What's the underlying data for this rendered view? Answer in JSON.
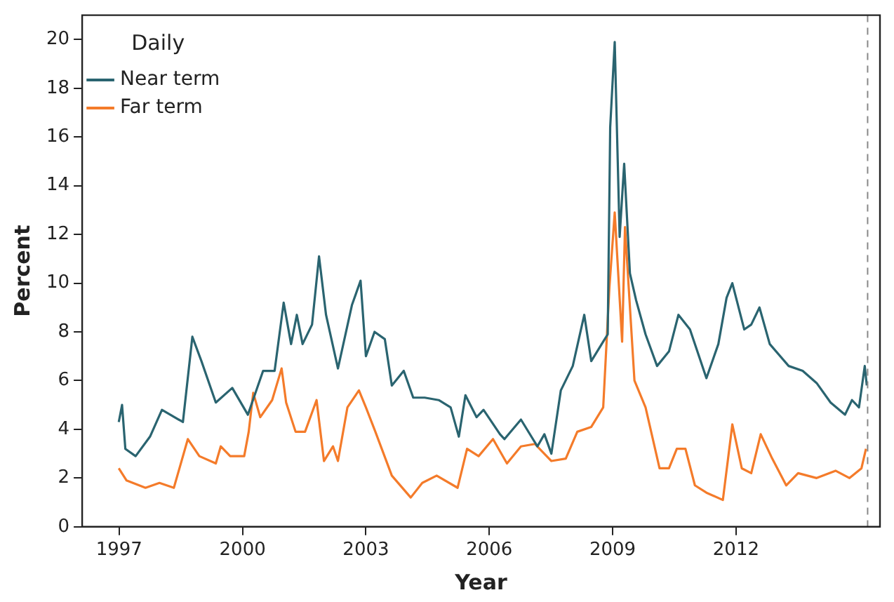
{
  "chart_data": {
    "type": "line",
    "xlabel": "Year",
    "ylabel": "Percent",
    "legend_title": "Daily",
    "legend": "top left",
    "grid": false,
    "marker": "none",
    "line_style": "solid",
    "xlim": [
      1996.1,
      2015.5
    ],
    "xticks": [
      1997,
      2000,
      2003,
      2006,
      2009,
      2012
    ],
    "ylim": [
      0,
      21
    ],
    "yticks": [
      0,
      2,
      4,
      6,
      8,
      10,
      12,
      14,
      16,
      18,
      20
    ],
    "ref_lines": [
      {
        "axis": "x",
        "value": 2015.2,
        "color": "#888888",
        "line_style": "dashed"
      }
    ],
    "series": [
      {
        "name": "Near term",
        "color": "#2a6470",
        "x": [
          1996.99,
          1997.07,
          1997.15,
          1997.4,
          1997.75,
          1998.04,
          1998.55,
          1998.78,
          1999.0,
          1999.35,
          1999.75,
          2000.13,
          2000.5,
          2000.78,
          2001.0,
          2001.18,
          2001.32,
          2001.46,
          2001.69,
          2001.86,
          2002.03,
          2002.32,
          2002.66,
          2002.87,
          2003.0,
          2003.21,
          2003.46,
          2003.63,
          2003.92,
          2004.15,
          2004.43,
          2004.77,
          2005.06,
          2005.26,
          2005.42,
          2005.69,
          2005.86,
          2006.26,
          2006.37,
          2006.77,
          2007.17,
          2007.34,
          2007.51,
          2007.74,
          2008.03,
          2008.31,
          2008.48,
          2008.77,
          2008.88,
          2008.94,
          2009.05,
          2009.17,
          2009.28,
          2009.42,
          2009.57,
          2009.8,
          2010.08,
          2010.37,
          2010.6,
          2010.88,
          2011.28,
          2011.57,
          2011.77,
          2011.91,
          2012.2,
          2012.37,
          2012.57,
          2012.82,
          2013.28,
          2013.62,
          2013.96,
          2014.3,
          2014.65,
          2014.82,
          2014.99,
          2015.13,
          2015.18
        ],
        "values": [
          4.3,
          5.0,
          3.2,
          2.9,
          3.7,
          4.8,
          4.3,
          7.8,
          6.8,
          5.1,
          5.7,
          4.6,
          6.4,
          6.4,
          9.2,
          7.5,
          8.7,
          7.5,
          8.3,
          11.1,
          8.7,
          6.5,
          9.1,
          10.1,
          7.0,
          8.0,
          7.7,
          5.8,
          6.4,
          5.3,
          5.3,
          5.2,
          4.9,
          3.7,
          5.4,
          4.5,
          4.8,
          3.8,
          3.6,
          4.4,
          3.3,
          3.8,
          3.0,
          5.6,
          6.6,
          8.7,
          6.8,
          7.6,
          7.9,
          16.4,
          19.9,
          11.9,
          14.9,
          10.4,
          9.3,
          7.9,
          6.6,
          7.2,
          8.7,
          8.1,
          6.1,
          7.5,
          9.4,
          10.0,
          8.1,
          8.3,
          9.0,
          7.5,
          6.6,
          6.4,
          5.9,
          5.1,
          4.6,
          5.2,
          4.9,
          6.6,
          5.8
        ]
      },
      {
        "name": "Far term",
        "color": "#f47b2a",
        "x": [
          1996.99,
          1997.18,
          1997.64,
          1997.98,
          1998.33,
          1998.67,
          1998.95,
          1999.35,
          1999.47,
          1999.7,
          2000.04,
          2000.15,
          2000.26,
          2000.43,
          2000.72,
          2000.95,
          2001.06,
          2001.29,
          2001.52,
          2001.8,
          2001.98,
          2002.2,
          2002.32,
          2002.55,
          2002.83,
          2003.0,
          2003.23,
          2003.63,
          2004.09,
          2004.37,
          2004.72,
          2005.23,
          2005.46,
          2005.74,
          2006.09,
          2006.43,
          2006.77,
          2007.11,
          2007.51,
          2007.86,
          2008.14,
          2008.48,
          2008.77,
          2008.92,
          2009.05,
          2009.23,
          2009.3,
          2009.53,
          2009.8,
          2010.14,
          2010.37,
          2010.56,
          2010.77,
          2011.0,
          2011.28,
          2011.68,
          2011.91,
          2012.14,
          2012.37,
          2012.6,
          2012.88,
          2013.22,
          2013.51,
          2013.96,
          2014.42,
          2014.76,
          2015.05,
          2015.16
        ],
        "values": [
          2.4,
          1.9,
          1.6,
          1.8,
          1.6,
          3.6,
          2.9,
          2.6,
          3.3,
          2.9,
          2.9,
          3.9,
          5.5,
          4.5,
          5.2,
          6.5,
          5.1,
          3.9,
          3.9,
          5.2,
          2.7,
          3.3,
          2.7,
          4.9,
          5.6,
          4.9,
          3.9,
          2.1,
          1.2,
          1.8,
          2.1,
          1.6,
          3.2,
          2.9,
          3.6,
          2.6,
          3.3,
          3.4,
          2.7,
          2.8,
          3.9,
          4.1,
          4.9,
          9.8,
          12.9,
          7.6,
          12.3,
          6.0,
          4.9,
          2.4,
          2.4,
          3.2,
          3.2,
          1.7,
          1.4,
          1.1,
          4.2,
          2.4,
          2.2,
          3.8,
          2.8,
          1.7,
          2.2,
          2.0,
          2.3,
          2.0,
          2.4,
          3.2
        ]
      }
    ]
  }
}
